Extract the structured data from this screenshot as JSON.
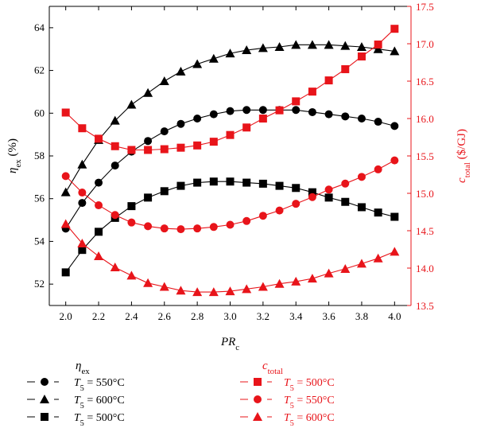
{
  "chart_data": {
    "type": "line",
    "x": [
      2.0,
      2.1,
      2.2,
      2.3,
      2.4,
      2.5,
      2.6,
      2.7,
      2.8,
      2.9,
      3.0,
      3.1,
      3.2,
      3.3,
      3.4,
      3.5,
      3.6,
      3.7,
      3.8,
      3.9,
      4.0
    ],
    "xlabel": {
      "main": "PR",
      "sub": "c"
    },
    "xlim": [
      1.9,
      4.1
    ],
    "x_ticks": [
      "2.0",
      "2.2",
      "2.4",
      "2.6",
      "2.8",
      "3.0",
      "3.2",
      "3.4",
      "3.6",
      "3.8",
      "4.0"
    ],
    "y_left": {
      "label": {
        "main": "η",
        "sub": "ex",
        "suffix": " (%)"
      },
      "lim": [
        51,
        65
      ],
      "ticks": [
        "52",
        "54",
        "56",
        "58",
        "60",
        "62",
        "64"
      ],
      "color": "#000000"
    },
    "y_right": {
      "label": {
        "main": "c",
        "sub": "total",
        "suffix": " ($/GJ)"
      },
      "lim": [
        13.5,
        17.5
      ],
      "ticks": [
        "13.5",
        "14.0",
        "14.5",
        "15.0",
        "15.5",
        "16.0",
        "16.5",
        "17.0",
        "17.5"
      ],
      "color": "#e8141a"
    },
    "series": [
      {
        "name": "T5 = 550°C",
        "group": "eta_ex",
        "axis": "left",
        "marker": "circle",
        "color": "#000000",
        "values": [
          54.6,
          55.8,
          56.75,
          57.55,
          58.2,
          58.7,
          59.15,
          59.5,
          59.75,
          59.95,
          60.1,
          60.15,
          60.15,
          60.15,
          60.15,
          60.05,
          59.95,
          59.85,
          59.75,
          59.6,
          59.4
        ]
      },
      {
        "name": "T5 = 600°C",
        "group": "eta_ex",
        "axis": "left",
        "marker": "triangle",
        "color": "#000000",
        "values": [
          56.3,
          57.6,
          58.75,
          59.65,
          60.4,
          60.95,
          61.5,
          61.95,
          62.3,
          62.55,
          62.8,
          62.95,
          63.05,
          63.1,
          63.2,
          63.2,
          63.2,
          63.15,
          63.1,
          63.0,
          62.9
        ]
      },
      {
        "name": "T5 = 500°C",
        "group": "eta_ex",
        "axis": "left",
        "marker": "square",
        "color": "#000000",
        "values": [
          52.55,
          53.6,
          54.45,
          55.1,
          55.65,
          56.05,
          56.35,
          56.6,
          56.75,
          56.8,
          56.8,
          56.75,
          56.7,
          56.6,
          56.5,
          56.3,
          56.05,
          55.85,
          55.6,
          55.35,
          55.15
        ]
      },
      {
        "name": "T5 = 500°C",
        "group": "c_total",
        "axis": "right",
        "marker": "square",
        "color": "#e8141a",
        "values": [
          16.08,
          15.87,
          15.73,
          15.63,
          15.58,
          15.58,
          15.59,
          15.61,
          15.64,
          15.69,
          15.78,
          15.88,
          16.0,
          16.11,
          16.23,
          16.36,
          16.51,
          16.66,
          16.83,
          16.99,
          17.2
        ]
      },
      {
        "name": "T5 = 550°C",
        "group": "c_total",
        "axis": "right",
        "marker": "circle",
        "color": "#e8141a",
        "values": [
          15.23,
          15.01,
          14.84,
          14.71,
          14.61,
          14.56,
          14.53,
          14.52,
          14.53,
          14.55,
          14.58,
          14.63,
          14.7,
          14.77,
          14.86,
          14.95,
          15.05,
          15.13,
          15.22,
          15.32,
          15.44
        ]
      },
      {
        "name": "T5 = 600°C",
        "group": "c_total",
        "axis": "right",
        "marker": "triangle",
        "color": "#e8141a",
        "values": [
          14.59,
          14.33,
          14.16,
          14.01,
          13.9,
          13.8,
          13.75,
          13.7,
          13.68,
          13.68,
          13.69,
          13.72,
          13.75,
          13.79,
          13.82,
          13.86,
          13.93,
          13.99,
          14.06,
          14.13,
          14.22
        ]
      }
    ]
  },
  "legend": {
    "left": {
      "title": {
        "main": "η",
        "sub": "ex"
      },
      "items": [
        {
          "marker": "circle",
          "var": "T",
          "sub": "5",
          "text": " = 550°C",
          "color": "#000000"
        },
        {
          "marker": "triangle",
          "var": "T",
          "sub": "5",
          "text": " = 600°C",
          "color": "#000000"
        },
        {
          "marker": "square",
          "var": "T",
          "sub": "5",
          "text": " = 500°C",
          "color": "#000000"
        }
      ]
    },
    "right": {
      "title": {
        "main": "c",
        "sub": "total"
      },
      "items": [
        {
          "marker": "square",
          "var": "T",
          "sub": "5",
          "text": " = 500°C",
          "color": "#e8141a"
        },
        {
          "marker": "circle",
          "var": "T",
          "sub": "5",
          "text": " = 550°C",
          "color": "#e8141a"
        },
        {
          "marker": "triangle",
          "var": "T",
          "sub": "5",
          "text": " = 600°C",
          "color": "#e8141a"
        }
      ]
    }
  }
}
